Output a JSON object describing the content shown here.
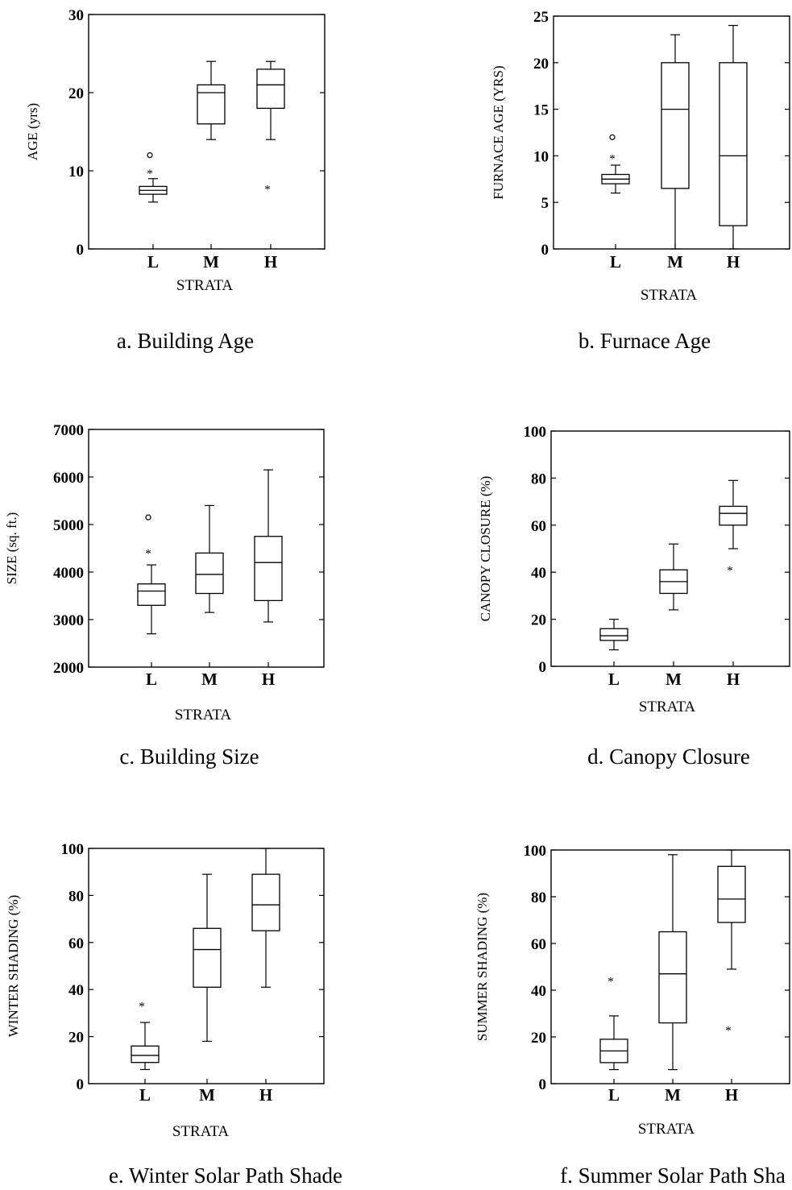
{
  "chart_data": [
    {
      "type": "box",
      "caption": "a.  Building Age",
      "xlabel": "STRATA",
      "ylabel": "AGE (yrs)",
      "ylim": [
        0,
        30
      ],
      "yticks": [
        0,
        10,
        20,
        30
      ],
      "categories": [
        "L",
        "M",
        "H"
      ],
      "boxes": [
        {
          "category": "L",
          "whisker_low": 6,
          "q1": 7,
          "median": 7.5,
          "q3": 8,
          "whisker_high": 9,
          "outliers": [
            {
              "value": 10,
              "marker": "star"
            },
            {
              "value": 12,
              "marker": "circle"
            }
          ]
        },
        {
          "category": "M",
          "whisker_low": 14,
          "q1": 16,
          "median": 20,
          "q3": 21,
          "whisker_high": 24,
          "outliers": []
        },
        {
          "category": "H",
          "whisker_low": 14,
          "q1": 18,
          "median": 21,
          "q3": 23,
          "whisker_high": 24,
          "outliers": [
            {
              "value": 8,
              "marker": "star"
            }
          ]
        }
      ]
    },
    {
      "type": "box",
      "caption": "b.  Furnace Age",
      "xlabel": "STRATA",
      "ylabel": "FURNACE AGE (YRS)",
      "ylim": [
        0,
        25
      ],
      "yticks": [
        0,
        5,
        10,
        15,
        20,
        25
      ],
      "categories": [
        "L",
        "M",
        "H"
      ],
      "boxes": [
        {
          "category": "L",
          "whisker_low": 6,
          "q1": 7,
          "median": 7.5,
          "q3": 8,
          "whisker_high": 9,
          "outliers": [
            {
              "value": 10,
              "marker": "star"
            },
            {
              "value": 12,
              "marker": "circle"
            }
          ]
        },
        {
          "category": "M",
          "whisker_low": 0,
          "q1": 6.5,
          "median": 15,
          "q3": 20,
          "whisker_high": 23,
          "outliers": []
        },
        {
          "category": "H",
          "whisker_low": 0,
          "q1": 2.5,
          "median": 10,
          "q3": 20,
          "whisker_high": 24,
          "outliers": []
        }
      ]
    },
    {
      "type": "box",
      "caption": "c.  Building Size",
      "xlabel": "STRATA",
      "ylabel": "SIZE (sq. ft.)",
      "ylim": [
        2000,
        7000
      ],
      "yticks": [
        2000,
        3000,
        4000,
        5000,
        6000,
        7000
      ],
      "categories": [
        "L",
        "M",
        "H"
      ],
      "boxes": [
        {
          "category": "L",
          "whisker_low": 2700,
          "q1": 3300,
          "median": 3600,
          "q3": 3750,
          "whisker_high": 4150,
          "outliers": [
            {
              "value": 4450,
              "marker": "star"
            },
            {
              "value": 5150,
              "marker": "circle"
            }
          ]
        },
        {
          "category": "M",
          "whisker_low": 3150,
          "q1": 3550,
          "median": 3950,
          "q3": 4400,
          "whisker_high": 5400,
          "outliers": []
        },
        {
          "category": "H",
          "whisker_low": 2950,
          "q1": 3400,
          "median": 4200,
          "q3": 4750,
          "whisker_high": 6150,
          "outliers": []
        }
      ]
    },
    {
      "type": "box",
      "caption": "d.  Canopy Closure",
      "xlabel": "STRATA",
      "ylabel": "CANOPY CLOSURE (%)",
      "ylim": [
        0,
        100
      ],
      "yticks": [
        0,
        20,
        40,
        60,
        80,
        100
      ],
      "ytick_labels": [
        "0",
        "20",
        "40",
        "60",
        "80",
        "100"
      ],
      "categories": [
        "L",
        "M",
        "H"
      ],
      "boxes": [
        {
          "category": "L",
          "whisker_low": 7,
          "q1": 11,
          "median": 13,
          "q3": 16,
          "whisker_high": 20,
          "outliers": []
        },
        {
          "category": "M",
          "whisker_low": 24,
          "q1": 31,
          "median": 36,
          "q3": 41,
          "whisker_high": 52,
          "outliers": []
        },
        {
          "category": "H",
          "whisker_low": 50,
          "q1": 60,
          "median": 65,
          "q3": 68,
          "whisker_high": 79,
          "outliers": [
            {
              "value": 42,
              "marker": "star"
            }
          ]
        }
      ]
    },
    {
      "type": "box",
      "caption": "e.  Winter Solar Path Shade",
      "xlabel": "STRATA",
      "ylabel": "WINTER SHADING (%)",
      "ylim": [
        0,
        100
      ],
      "yticks": [
        0,
        20,
        40,
        60,
        80,
        100
      ],
      "categories": [
        "L",
        "M",
        "H"
      ],
      "boxes": [
        {
          "category": "L",
          "whisker_low": 6,
          "q1": 9,
          "median": 12,
          "q3": 16,
          "whisker_high": 26,
          "outliers": [
            {
              "value": 34,
              "marker": "star"
            }
          ]
        },
        {
          "category": "M",
          "whisker_low": 18,
          "q1": 41,
          "median": 57,
          "q3": 66,
          "whisker_high": 89,
          "outliers": []
        },
        {
          "category": "H",
          "whisker_low": 41,
          "q1": 65,
          "median": 76,
          "q3": 89,
          "whisker_high": 100,
          "outliers": []
        }
      ]
    },
    {
      "type": "box",
      "caption": "f.  Summer Solar Path Sha",
      "xlabel": "STRATA",
      "ylabel": "SUMMER SHADING (%)",
      "ylim": [
        0,
        100
      ],
      "yticks": [
        0,
        20,
        40,
        60,
        80,
        100
      ],
      "categories": [
        "L",
        "M",
        "H"
      ],
      "boxes": [
        {
          "category": "L",
          "whisker_low": 6,
          "q1": 9,
          "median": 14,
          "q3": 19,
          "whisker_high": 29,
          "outliers": [
            {
              "value": 45,
              "marker": "star"
            }
          ]
        },
        {
          "category": "M",
          "whisker_low": 6,
          "q1": 26,
          "median": 47,
          "q3": 65,
          "whisker_high": 98,
          "outliers": []
        },
        {
          "category": "H",
          "whisker_low": 49,
          "q1": 69,
          "median": 79,
          "q3": 93,
          "whisker_high": 100,
          "outliers": [
            {
              "value": 24,
              "marker": "star"
            }
          ]
        }
      ]
    }
  ]
}
